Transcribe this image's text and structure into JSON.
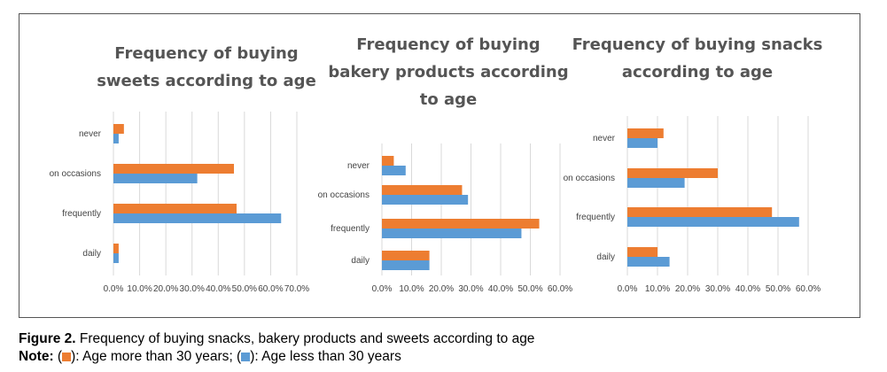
{
  "colors": {
    "over30": "#ED7D31",
    "under30": "#5B9BD5"
  },
  "legend": {
    "over30_text": "Age more than 30 years",
    "under30_text": "Age less than 30 years"
  },
  "caption": {
    "figure_label": "Figure 2.",
    "figure_text": " Frequency of buying snacks, bakery products and sweets according to age",
    "note_label": "Note:",
    "p1": " (",
    "p2": "): ",
    "p3": "; (",
    "p4": "): "
  },
  "chart_data": [
    {
      "type": "bar",
      "orientation": "horizontal",
      "title_lines": [
        "Frequency of buying",
        "sweets according to age"
      ],
      "categories": [
        "never",
        "on occasions",
        "frequently",
        "daily"
      ],
      "series": [
        {
          "key": "over30",
          "values": [
            4,
            46,
            47,
            2
          ]
        },
        {
          "key": "under30",
          "values": [
            2,
            32,
            64,
            2
          ]
        }
      ],
      "xlim": [
        0,
        70
      ],
      "ticks": [
        "0.0%",
        "10.0%",
        "20.0%",
        "30.0%",
        "40.0%",
        "50.0%",
        "60.0%",
        "70.0%"
      ],
      "grid": true
    },
    {
      "type": "bar",
      "orientation": "horizontal",
      "title_lines": [
        "Frequency of buying",
        "bakery products according",
        "to age"
      ],
      "categories": [
        "never",
        "on occasions",
        "frequently",
        "daily"
      ],
      "series": [
        {
          "key": "over30",
          "values": [
            4,
            27,
            53,
            16
          ]
        },
        {
          "key": "under30",
          "values": [
            8,
            29,
            47,
            16
          ]
        }
      ],
      "xlim": [
        0,
        60
      ],
      "ticks": [
        "0.0%",
        "10.0%",
        "20.0%",
        "30.0%",
        "40.0%",
        "50.0%",
        "60.0%"
      ],
      "grid": true
    },
    {
      "type": "bar",
      "orientation": "horizontal",
      "title_lines": [
        "Frequency of buying snacks",
        "according to age"
      ],
      "categories": [
        "never",
        "on occasions",
        "frequently",
        "daily"
      ],
      "series": [
        {
          "key": "over30",
          "values": [
            12,
            30,
            48,
            10
          ]
        },
        {
          "key": "under30",
          "values": [
            10,
            19,
            57,
            14
          ]
        }
      ],
      "xlim": [
        0,
        60
      ],
      "ticks": [
        "0.0%",
        "10.0%",
        "20.0%",
        "30.0%",
        "40.0%",
        "50.0%",
        "60.0%"
      ],
      "grid": true
    }
  ]
}
